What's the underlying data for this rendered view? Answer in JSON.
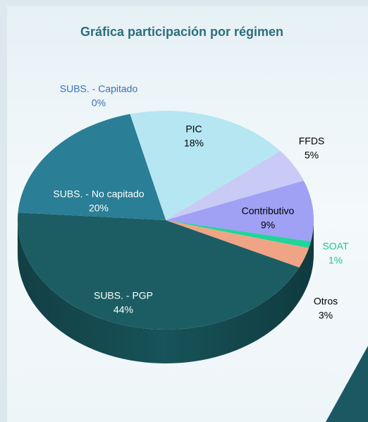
{
  "chart_data": {
    "type": "pie",
    "title": "Gráfica participación por régimen",
    "categories": [
      "SUBS. - Capitado",
      "PIC",
      "FFDS",
      "Contributivo",
      "SOAT",
      "Otros",
      "SUBS. - PGP",
      "SUBS. - No capitado"
    ],
    "values": [
      0,
      18,
      5,
      9,
      1,
      3,
      44,
      20
    ],
    "value_labels": [
      "0%",
      "18%",
      "5%",
      "9%",
      "1%",
      "3%",
      "44%",
      "20%"
    ],
    "colors": [
      "#1a237e",
      "#b5e6f2",
      "#cacaf6",
      "#a0a0f4",
      "#22d49a",
      "#f0a486",
      "#1c5d63",
      "#2a7e95"
    ],
    "label_colors": [
      "#3b70b4",
      "#000000",
      "#000000",
      "#000000",
      "#22c48e",
      "#000000",
      "#ffffff",
      "#ffffff"
    ]
  }
}
